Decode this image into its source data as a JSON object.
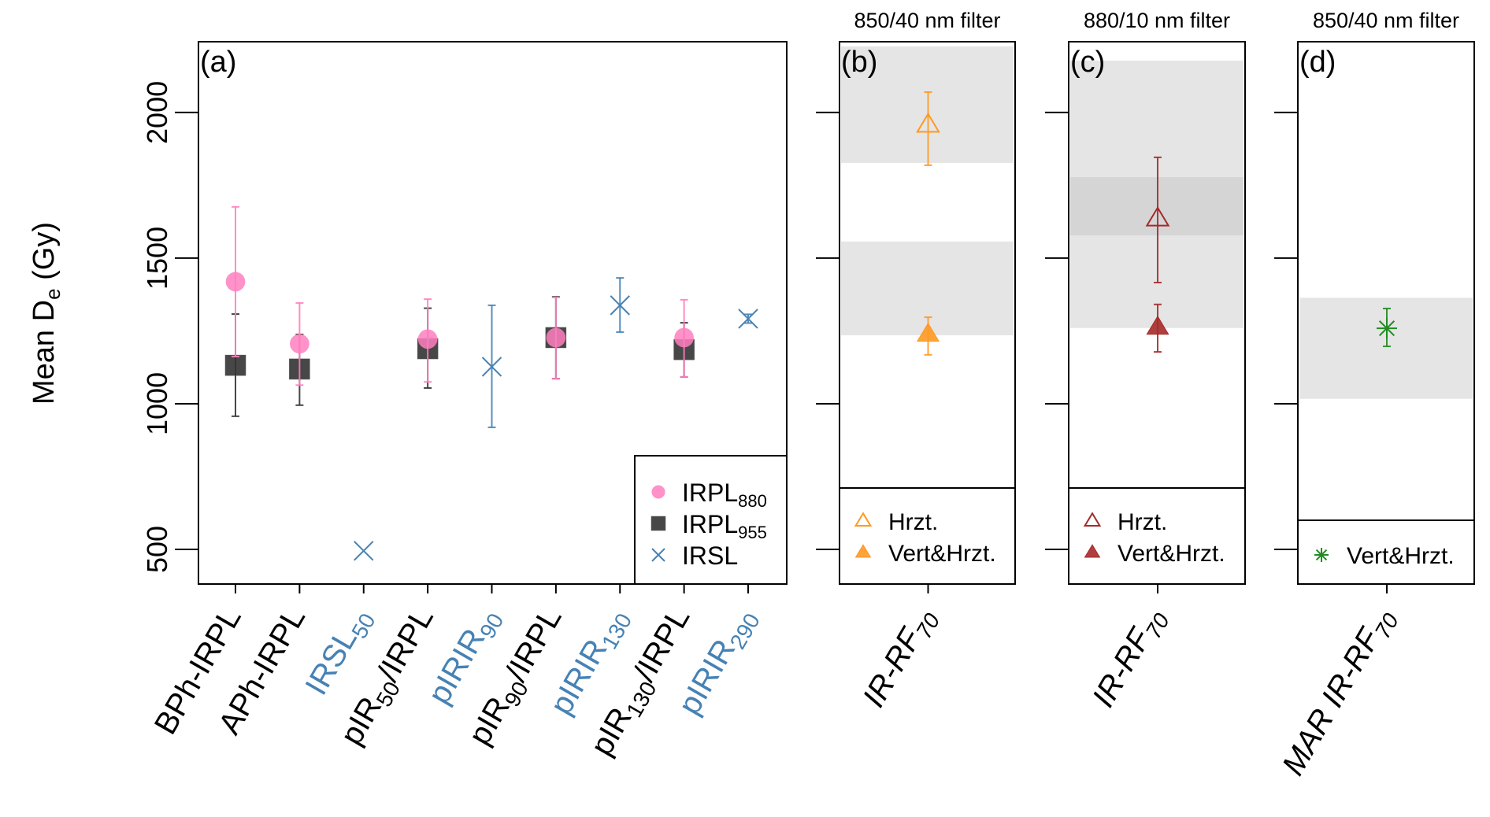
{
  "figure": {
    "ylabel_main": "Mean D",
    "ylabel_sub": "e",
    "ylabel_unit": " (Gy)",
    "colors": {
      "irpl880": "#ff7fbf",
      "irpl955": "#333333",
      "irsl": "#4682b4",
      "band": "#e5e5e5",
      "band_overlap": "#d9d9d9",
      "orange": "#ff9922",
      "darkred": "#a52a2a",
      "green": "#228b22",
      "label_black": "#000000",
      "label_blue": "#4682b4"
    }
  },
  "chart_data": [
    {
      "id": "a",
      "type": "scatter",
      "panel_label": "(a)",
      "title": "",
      "ylabel": "Mean De (Gy)",
      "ylim": [
        381,
        2243
      ],
      "yticks": [
        500,
        1000,
        1500,
        2000
      ],
      "grid": false,
      "legend_position": "bottom-right",
      "categories": [
        {
          "main": "BPh-IRPL",
          "sub": "",
          "rest": "",
          "color": "label_black"
        },
        {
          "main": "APh-IRPL",
          "sub": "",
          "rest": "",
          "color": "label_black"
        },
        {
          "main": "IRSL",
          "sub": "50",
          "rest": "",
          "color": "label_blue"
        },
        {
          "main": "pIR",
          "sub": "50",
          "rest": "/IRPL",
          "color": "label_black"
        },
        {
          "main": "pIRIR",
          "sub": "90",
          "rest": "",
          "color": "label_blue"
        },
        {
          "main": "pIR",
          "sub": "90",
          "rest": "/IRPL",
          "color": "label_black"
        },
        {
          "main": "pIRIR",
          "sub": "130",
          "rest": "",
          "color": "label_blue"
        },
        {
          "main": "pIR",
          "sub": "130",
          "rest": "/IRPL",
          "color": "label_black"
        },
        {
          "main": "pIRIR",
          "sub": "290",
          "rest": "",
          "color": "label_blue"
        }
      ],
      "series": [
        {
          "name": "IRPL880",
          "legend_main": "IRPL",
          "legend_sub": "880",
          "marker": "circle",
          "color": "irpl880",
          "points": [
            {
              "x": 0,
              "y": 1419,
              "lo": 1162,
              "hi": 1676
            },
            {
              "x": 1,
              "y": 1206,
              "lo": 1064,
              "hi": 1346
            },
            {
              "x": 3,
              "y": 1222,
              "lo": 1075,
              "hi": 1359
            },
            {
              "x": 5,
              "y": 1227,
              "lo": 1086,
              "hi": 1365
            },
            {
              "x": 7,
              "y": 1227,
              "lo": 1092,
              "hi": 1357
            }
          ]
        },
        {
          "name": "IRPL955",
          "legend_main": "IRPL",
          "legend_sub": "955",
          "marker": "square",
          "color": "irpl955",
          "points": [
            {
              "x": 0,
              "y": 1132,
              "lo": 957,
              "hi": 1308
            },
            {
              "x": 1,
              "y": 1119,
              "lo": 995,
              "hi": 1238
            },
            {
              "x": 3,
              "y": 1189,
              "lo": 1054,
              "hi": 1328
            },
            {
              "x": 5,
              "y": 1227,
              "lo": 1086,
              "hi": 1367
            },
            {
              "x": 7,
              "y": 1186,
              "lo": 1092,
              "hi": 1278
            }
          ]
        },
        {
          "name": "IRSL",
          "legend_main": "IRSL",
          "legend_sub": "",
          "marker": "x",
          "color": "irsl",
          "points": [
            {
              "x": 2,
              "y": 495,
              "lo": 495,
              "hi": 495
            },
            {
              "x": 4,
              "y": 1127,
              "lo": 919,
              "hi": 1338
            },
            {
              "x": 6,
              "y": 1338,
              "lo": 1246,
              "hi": 1432
            },
            {
              "x": 8,
              "y": 1292,
              "lo": 1277,
              "hi": 1307
            }
          ]
        }
      ]
    },
    {
      "id": "b",
      "type": "scatter",
      "panel_label": "(b)",
      "title": "850/40 nm filter",
      "ylim": [
        381,
        2243
      ],
      "yticks": [
        500,
        1000,
        1500,
        2000
      ],
      "category": {
        "main": "IR-RF",
        "sub": "70",
        "prefix": ""
      },
      "bands": [
        {
          "lo": 1827,
          "hi": 2227
        },
        {
          "lo": 1235,
          "hi": 1557
        }
      ],
      "legend_position": "bottom",
      "series": [
        {
          "name": "Hrzt.",
          "marker": "triangle-open",
          "color": "orange",
          "y": 1957,
          "lo": 1819,
          "hi": 2070
        },
        {
          "name": "Vert&Hrzt.",
          "marker": "triangle-filled",
          "color": "orange",
          "y": 1238,
          "lo": 1168,
          "hi": 1297
        }
      ]
    },
    {
      "id": "c",
      "type": "scatter",
      "panel_label": "(c)",
      "title": "880/10 nm filter",
      "ylim": [
        381,
        2243
      ],
      "yticks": [
        500,
        1000,
        1500,
        2000
      ],
      "category": {
        "main": "IR-RF",
        "sub": "70",
        "prefix": ""
      },
      "bands": [
        {
          "lo": 1578,
          "hi": 2178
        },
        {
          "lo": 1260,
          "hi": 1778
        }
      ],
      "legend_position": "bottom",
      "series": [
        {
          "name": "Hrzt.",
          "marker": "triangle-open",
          "color": "darkred",
          "y": 1635,
          "lo": 1416,
          "hi": 1846
        },
        {
          "name": "Vert&Hrzt.",
          "marker": "triangle-filled",
          "color": "darkred",
          "y": 1262,
          "lo": 1178,
          "hi": 1341
        }
      ]
    },
    {
      "id": "d",
      "type": "scatter",
      "panel_label": "(d)",
      "title": "850/40 nm filter",
      "ylim": [
        381,
        2243
      ],
      "yticks": [
        500,
        1000,
        1500,
        2000
      ],
      "category": {
        "main": "IR-RF",
        "sub": "70",
        "prefix": "MAR "
      },
      "bands": [
        {
          "lo": 1017,
          "hi": 1364
        }
      ],
      "legend_position": "bottom",
      "series": [
        {
          "name": "Vert&Hrzt.",
          "marker": "asterisk",
          "color": "green",
          "y": 1259,
          "lo": 1197,
          "hi": 1327
        }
      ]
    }
  ]
}
